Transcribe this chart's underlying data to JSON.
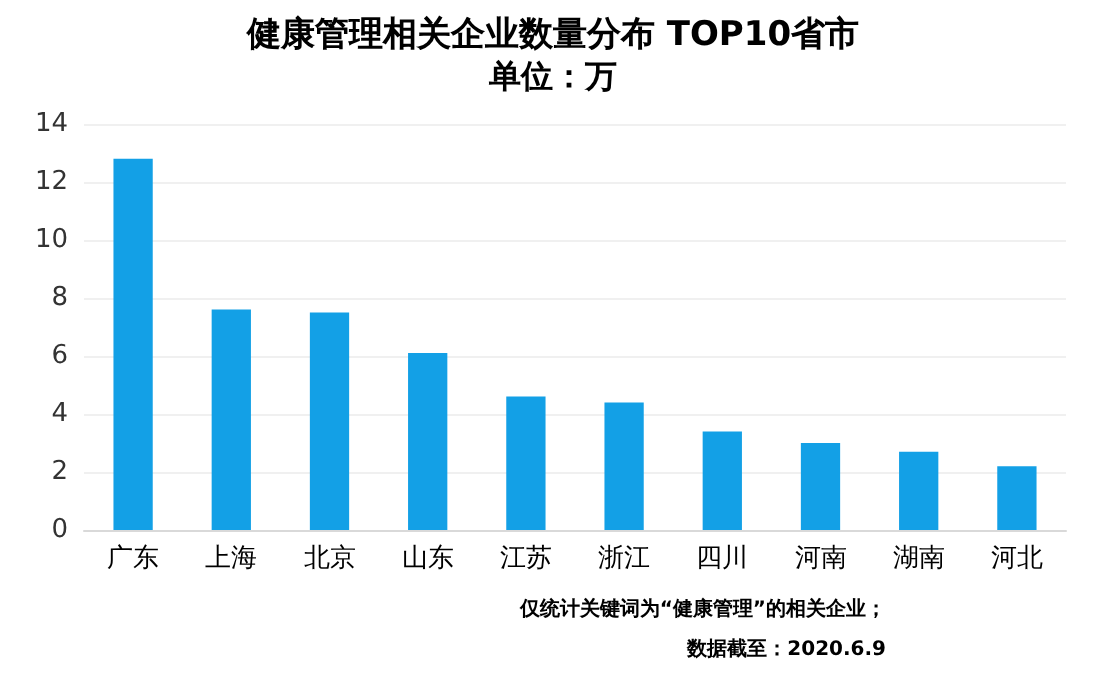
{
  "chart_data": {
    "type": "bar",
    "title": "健康管理相关企业数量分布 TOP10省市",
    "subtitle": "单位：万",
    "categories": [
      "广东",
      "上海",
      "北京",
      "山东",
      "江苏",
      "浙江",
      "四川",
      "河南",
      "湖南",
      "河北"
    ],
    "values": [
      12.8,
      7.6,
      7.5,
      6.1,
      4.6,
      4.4,
      3.4,
      3.0,
      2.7,
      2.2
    ],
    "color": "#13a0e6",
    "ylim": [
      0,
      14
    ],
    "yticks": [
      0,
      2,
      4,
      6,
      8,
      10,
      12,
      14
    ],
    "grid": "y",
    "annotations": [
      "仅统计关键词为“健康管理”的相关企业；",
      "数据截至：2020.6.9"
    ]
  }
}
